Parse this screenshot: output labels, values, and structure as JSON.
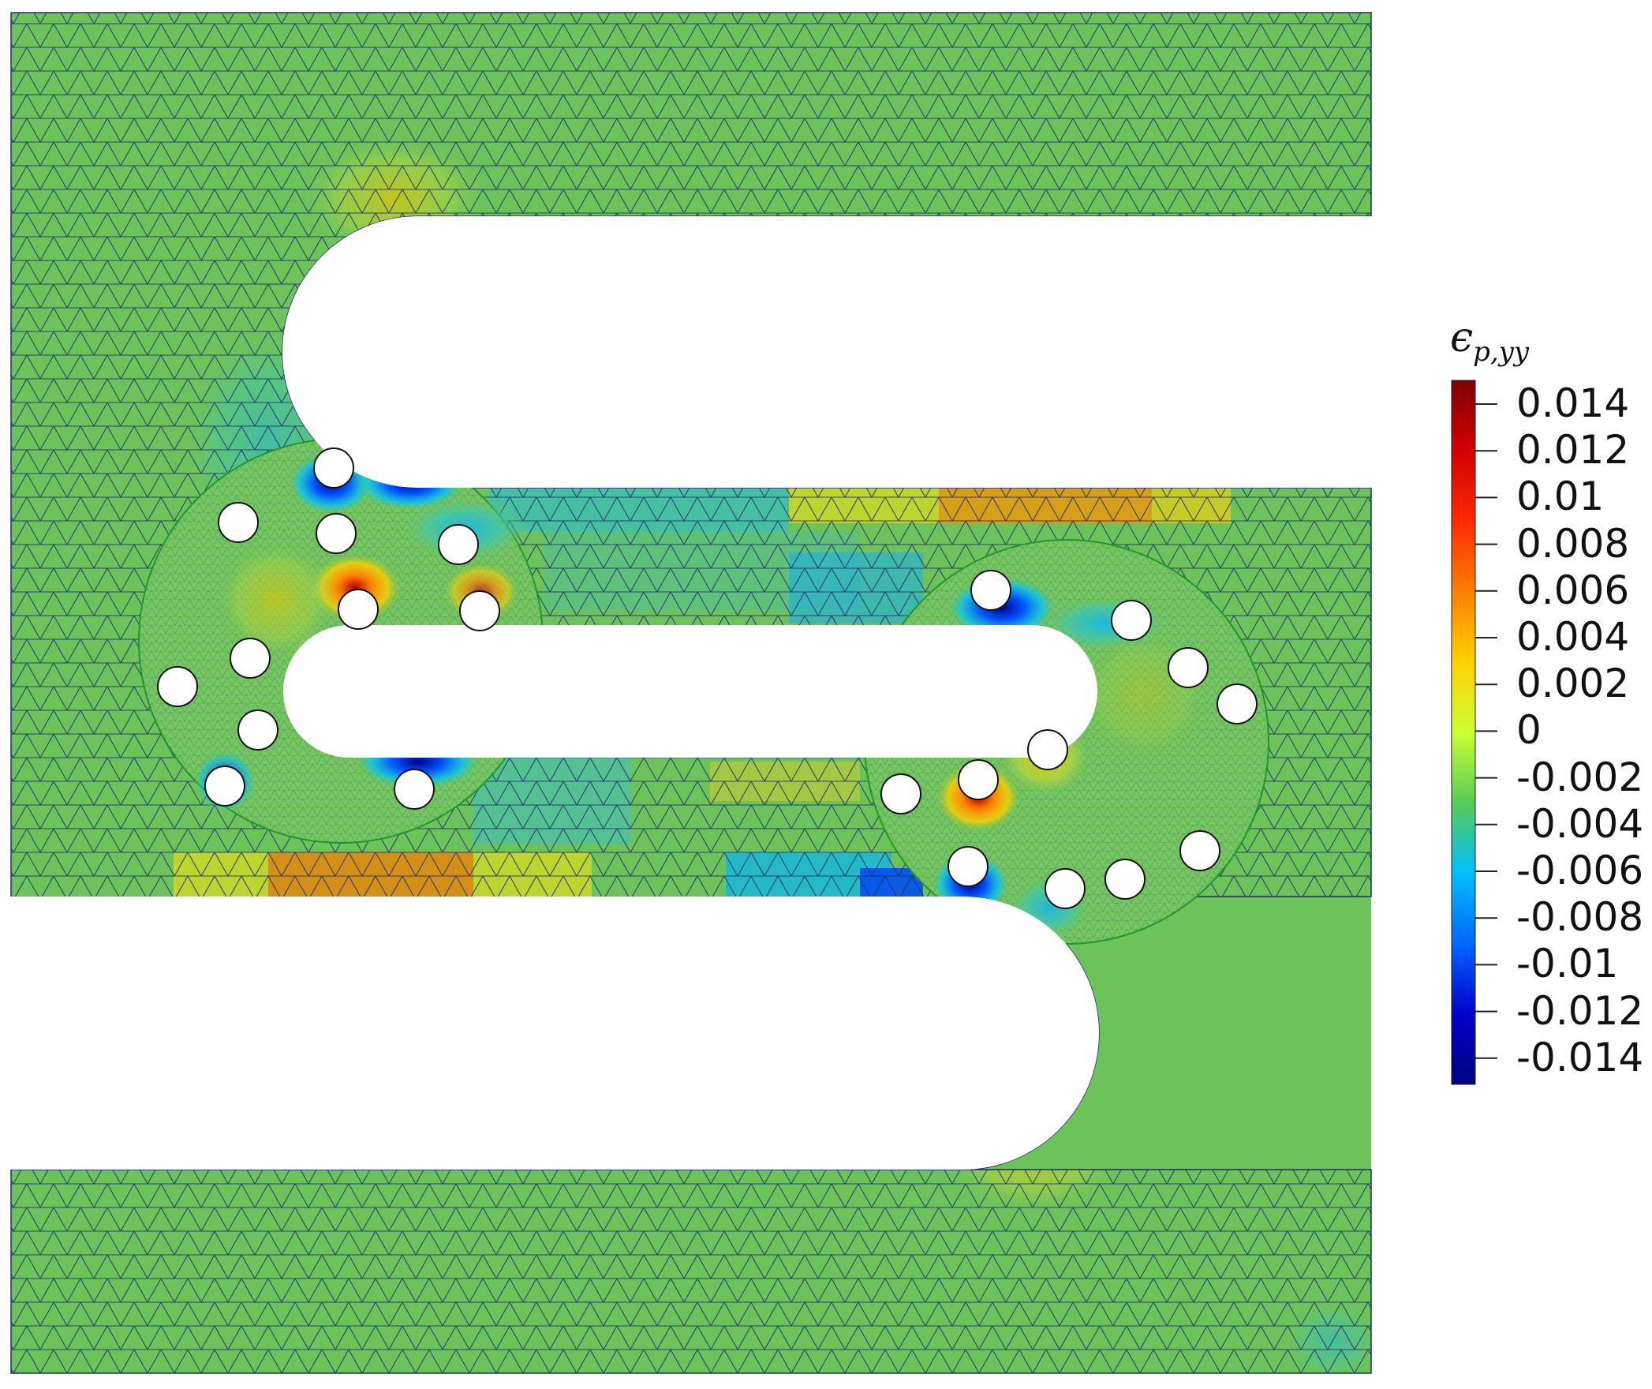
{
  "colorbar": {
    "title_symbol": "ϵ",
    "title_subscript": "p,yy",
    "ticks": [
      "0.014",
      "0.012",
      "0.01",
      "0.008",
      "0.006",
      "0.004",
      "0.002",
      "0",
      "-0.002",
      "-0.004",
      "-0.006",
      "-0.008",
      "-0.01",
      "-0.012",
      "-0.014"
    ],
    "colors": [
      "#7f0000",
      "#d40000",
      "#ff2a00",
      "#ff7f00",
      "#ffd200",
      "#ccff33",
      "#55cc55",
      "#00bfff",
      "#0066ff",
      "#0000cc",
      "#000080"
    ],
    "range": [
      -0.015,
      0.015
    ]
  },
  "mesh": {
    "base_color": "#6cc35a",
    "line_color": "#1f2d6e",
    "void_color": "#ffffff",
    "hole_color": "#ffffff",
    "hole_stroke": "#111111"
  }
}
